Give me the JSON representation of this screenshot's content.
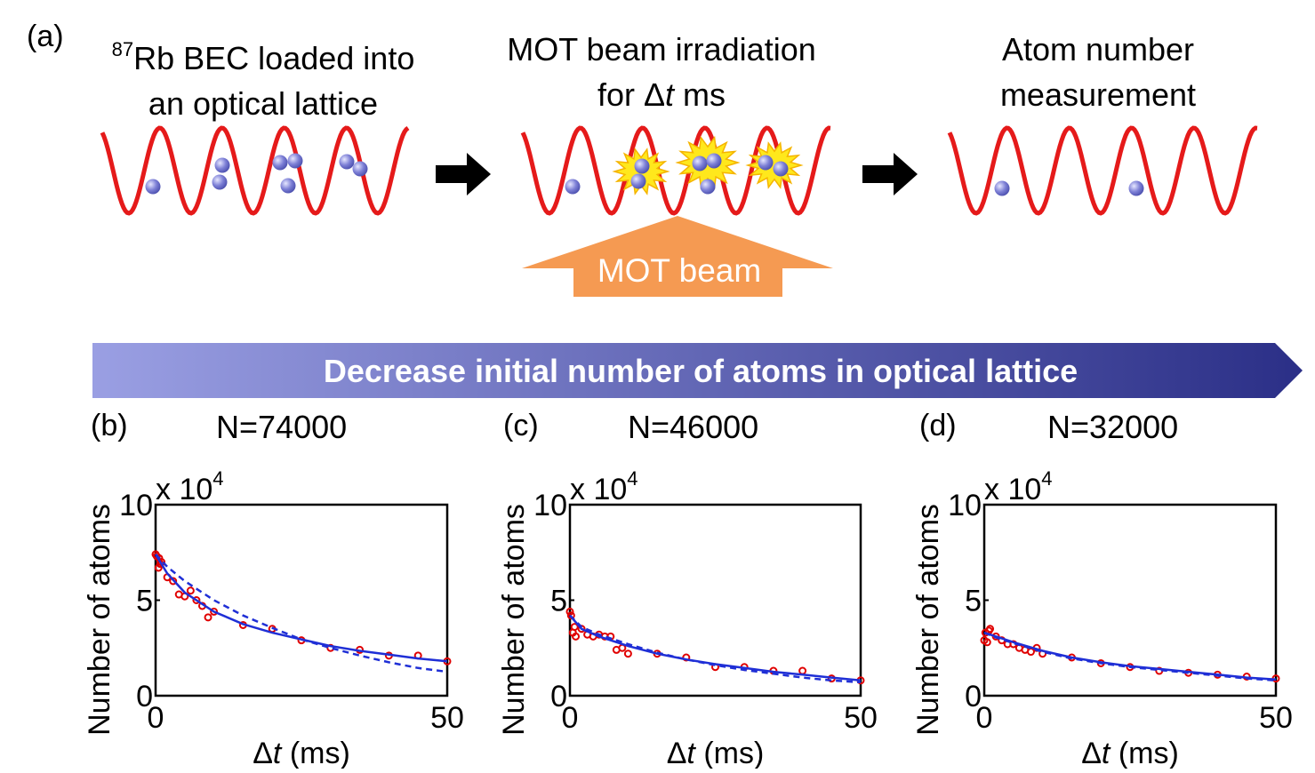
{
  "panel_a": {
    "letter": "(a)",
    "step1": {
      "sup": "87",
      "line1": "Rb BEC loaded into",
      "line2": "an optical lattice"
    },
    "step2": {
      "line1": "MOT beam irradiation",
      "line2_pre": "for Δ",
      "line2_it": "t",
      "line2_post": " ms"
    },
    "step3": {
      "line1": "Atom number",
      "line2": "measurement"
    },
    "beam_label": "MOT beam",
    "banner_text": "Decrease initial number of atoms in optical lattice",
    "colors": {
      "lattice": "#e51a1a",
      "atom": "#7d80d6",
      "beam": "#f59a52",
      "flash": "#ffe81c",
      "banner_start": "#9a9fe3",
      "banner_end": "#2b2f87"
    }
  },
  "chart_data": [
    {
      "type": "scatter",
      "panel": "(b)",
      "title": "N=74000",
      "xlabel_symbol": "Δ",
      "xlabel_italic": "t",
      "xlabel_unit": " (ms)",
      "ylabel": "Number of atoms",
      "y_multiplier": "x 10",
      "y_multiplier_exp": "4",
      "xlim": [
        0,
        50
      ],
      "ylim": [
        0,
        10
      ],
      "xticks": [
        0,
        50
      ],
      "yticks": [
        0,
        5,
        10
      ],
      "x_tick_labels": [
        "0",
        "50"
      ],
      "y_tick_labels": [
        "0",
        "5",
        "10"
      ],
      "series": [
        {
          "role": "data",
          "color": "#e00000",
          "x": [
            0,
            0.2,
            0.5,
            0.6,
            0.8,
            1,
            2,
            3,
            4,
            5,
            6,
            7,
            8,
            9,
            10,
            15,
            20,
            25,
            30,
            35,
            40,
            45,
            50
          ],
          "y": [
            7.4,
            7.3,
            6.7,
            7.2,
            6.9,
            7.0,
            6.2,
            6.0,
            5.3,
            5.2,
            5.5,
            5.0,
            4.7,
            4.1,
            4.4,
            3.7,
            3.5,
            2.9,
            2.5,
            2.4,
            2.1,
            2.1,
            1.8
          ]
        },
        {
          "role": "fit-solid",
          "color": "#1f2fd6",
          "x": [
            0,
            2,
            5,
            10,
            15,
            20,
            25,
            30,
            35,
            40,
            45,
            50
          ],
          "y": [
            7.4,
            6.4,
            5.4,
            4.4,
            3.75,
            3.3,
            2.95,
            2.6,
            2.35,
            2.15,
            1.95,
            1.8
          ]
        },
        {
          "role": "fit-dashed",
          "color": "#1f2fd6",
          "x": [
            0,
            2,
            5,
            10,
            15,
            20,
            25,
            30,
            35,
            40,
            45,
            50
          ],
          "y": [
            7.4,
            6.75,
            6.0,
            5.0,
            4.2,
            3.55,
            2.95,
            2.5,
            2.1,
            1.75,
            1.45,
            1.25
          ]
        }
      ]
    },
    {
      "type": "scatter",
      "panel": "(c)",
      "title": "N=46000",
      "xlabel_symbol": "Δ",
      "xlabel_italic": "t",
      "xlabel_unit": " (ms)",
      "ylabel": "Number of atoms",
      "y_multiplier": "x 10",
      "y_multiplier_exp": "4",
      "xlim": [
        0,
        50
      ],
      "ylim": [
        0,
        10
      ],
      "xticks": [
        0,
        50
      ],
      "yticks": [
        0,
        5,
        10
      ],
      "x_tick_labels": [
        "0",
        "50"
      ],
      "y_tick_labels": [
        "0",
        "5",
        "10"
      ],
      "series": [
        {
          "role": "data",
          "color": "#e00000",
          "x": [
            0,
            0.2,
            0.5,
            0.8,
            1,
            2,
            3,
            4,
            5,
            6,
            7,
            8,
            9,
            10,
            15,
            20,
            25,
            30,
            35,
            40,
            45,
            50
          ],
          "y": [
            4.4,
            4.2,
            3.3,
            3.6,
            3.1,
            3.5,
            3.2,
            3.1,
            3.2,
            3.1,
            3.1,
            2.4,
            2.5,
            2.2,
            2.2,
            2.0,
            1.5,
            1.5,
            1.3,
            1.3,
            0.9,
            0.8
          ]
        },
        {
          "role": "fit-solid",
          "color": "#1f2fd6",
          "x": [
            0,
            2,
            5,
            10,
            15,
            20,
            25,
            30,
            35,
            40,
            45,
            50
          ],
          "y": [
            4.2,
            3.5,
            3.1,
            2.6,
            2.2,
            1.9,
            1.65,
            1.45,
            1.25,
            1.1,
            0.95,
            0.8
          ]
        },
        {
          "role": "fit-dashed",
          "color": "#1f2fd6",
          "x": [
            0,
            2,
            5,
            10,
            15,
            20,
            25,
            30,
            35,
            40,
            45,
            50
          ],
          "y": [
            4.2,
            3.6,
            3.2,
            2.7,
            2.25,
            1.9,
            1.6,
            1.35,
            1.15,
            0.95,
            0.8,
            0.7
          ]
        }
      ]
    },
    {
      "type": "scatter",
      "panel": "(d)",
      "title": "N=32000",
      "xlabel_symbol": "Δ",
      "xlabel_italic": "t",
      "xlabel_unit": " (ms)",
      "ylabel": "Number of atoms",
      "y_multiplier": "x 10",
      "y_multiplier_exp": "4",
      "xlim": [
        0,
        50
      ],
      "ylim": [
        0,
        10
      ],
      "xticks": [
        0,
        50
      ],
      "yticks": [
        0,
        5,
        10
      ],
      "x_tick_labels": [
        "0",
        "50"
      ],
      "y_tick_labels": [
        "0",
        "5",
        "10"
      ],
      "series": [
        {
          "role": "data",
          "color": "#e00000",
          "x": [
            0,
            0.2,
            0.5,
            0.8,
            1,
            2,
            3,
            4,
            5,
            6,
            7,
            8,
            9,
            10,
            15,
            20,
            25,
            30,
            35,
            40,
            45,
            50
          ],
          "y": [
            2.9,
            3.3,
            2.8,
            3.4,
            3.5,
            3.1,
            2.9,
            2.7,
            2.7,
            2.5,
            2.4,
            2.3,
            2.5,
            2.2,
            2.0,
            1.7,
            1.5,
            1.3,
            1.2,
            1.1,
            1.0,
            0.9
          ]
        },
        {
          "role": "fit-solid",
          "color": "#1f2fd6",
          "x": [
            0,
            2,
            5,
            10,
            15,
            20,
            25,
            30,
            35,
            40,
            45,
            50
          ],
          "y": [
            3.3,
            3.1,
            2.8,
            2.35,
            2.0,
            1.75,
            1.55,
            1.4,
            1.25,
            1.1,
            0.95,
            0.85
          ]
        },
        {
          "role": "fit-dashed",
          "color": "#1f2fd6",
          "x": [
            0,
            2,
            5,
            10,
            15,
            20,
            25,
            30,
            35,
            40,
            45,
            50
          ],
          "y": [
            3.3,
            3.05,
            2.75,
            2.3,
            1.95,
            1.7,
            1.5,
            1.35,
            1.2,
            1.05,
            0.9,
            0.8
          ]
        }
      ]
    }
  ]
}
